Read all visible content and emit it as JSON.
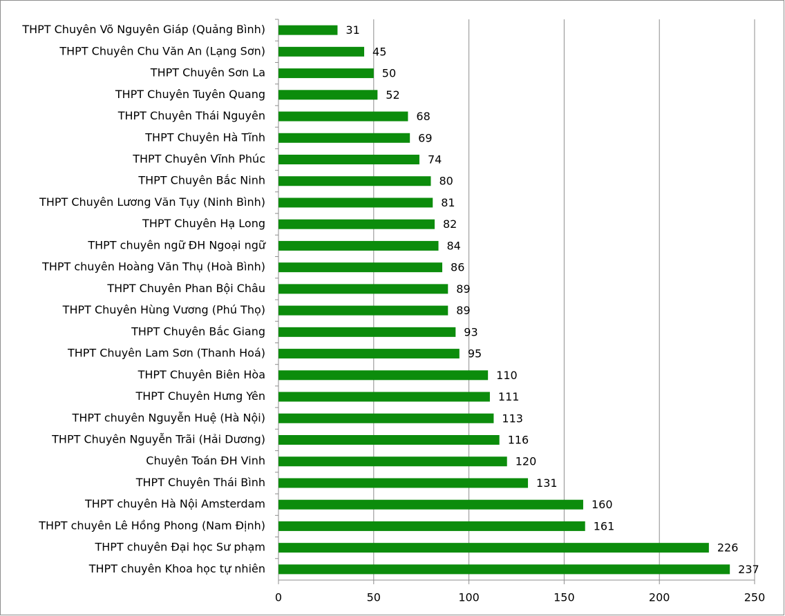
{
  "chart_data": {
    "type": "bar",
    "categories": [
      "THPT Chuyên Võ Nguyên Giáp (Quảng Bình)",
      "THPT Chuyên Chu Văn An (Lạng Sơn)",
      "THPT Chuyên Sơn La",
      "THPT Chuyên Tuyên Quang",
      "THPT Chuyên Thái Nguyên",
      "THPT Chuyên Hà Tĩnh",
      "THPT Chuyên Vĩnh Phúc",
      "THPT Chuyên Bắc Ninh",
      "THPT Chuyên Lương Văn Tụy (Ninh Bình)",
      "THPT Chuyên Hạ Long",
      "THPT chuyên ngữ ĐH Ngoại ngữ",
      "THPT chuyên Hoàng Văn Thụ (Hoà Bình)",
      "THPT Chuyên Phan Bội Châu",
      "THPT Chuyên Hùng Vương (Phú Thọ)",
      "THPT Chuyên Bắc Giang",
      "THPT Chuyên Lam Sơn (Thanh Hoá)",
      "THPT Chuyên Biên Hòa",
      "THPT Chuyên Hưng Yên",
      "THPT chuyên Nguyễn Huệ (Hà Nội)",
      "THPT Chuyên Nguyễn Trãi (Hải Dương)",
      "Chuyên Toán ĐH Vinh",
      "THPT Chuyên Thái Bình",
      "THPT chuyên Hà Nội Amsterdam",
      "THPT chuyên Lê Hồng Phong (Nam Định)",
      "THPT chuyên Đại học Sư phạm",
      "THPT chuyên Khoa học tự nhiên"
    ],
    "values": [
      31,
      45,
      50,
      52,
      68,
      69,
      74,
      80,
      81,
      82,
      84,
      86,
      89,
      89,
      93,
      95,
      110,
      111,
      113,
      116,
      120,
      131,
      160,
      161,
      226,
      237
    ],
    "color": "#0c8c0c",
    "xlim": [
      0,
      250
    ],
    "xticks": [
      0,
      50,
      100,
      150,
      200,
      250
    ],
    "grid": true
  }
}
